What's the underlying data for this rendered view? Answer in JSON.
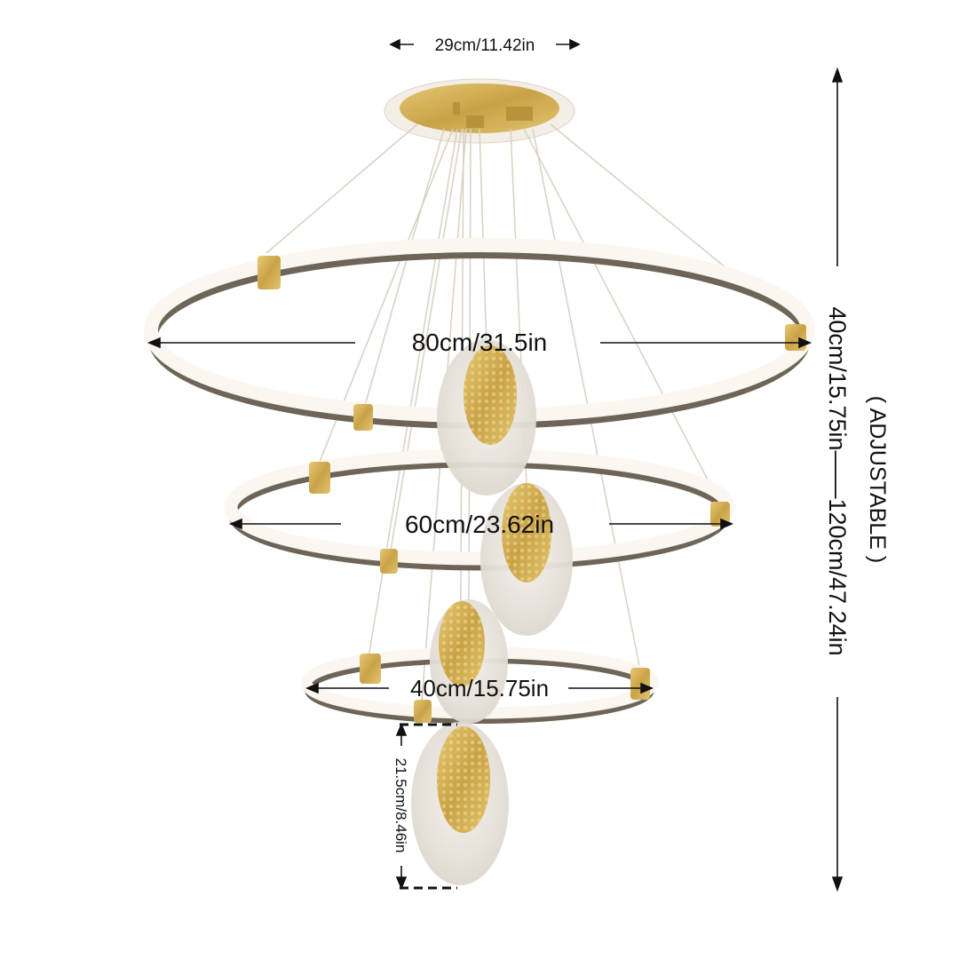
{
  "product": {
    "type": "three-ring LED pendant chandelier with crystal-textured oval pendants",
    "colors": {
      "gold": "#d4b25a",
      "ring_light": "#fbf7f0",
      "ring_underside": "#6e6558",
      "crystal": "#eeeae4"
    }
  },
  "dimensions": {
    "canopy_width": "29cm/11.42in",
    "ring_large": "80cm/31.5in",
    "ring_medium": "60cm/23.62in",
    "ring_small": "40cm/15.75in",
    "pendant_height": "21.5cm/8.46in",
    "height_range": "40cm/15.75in——120cm/47.24in",
    "height_note": "( ADJUSTABLE )"
  }
}
